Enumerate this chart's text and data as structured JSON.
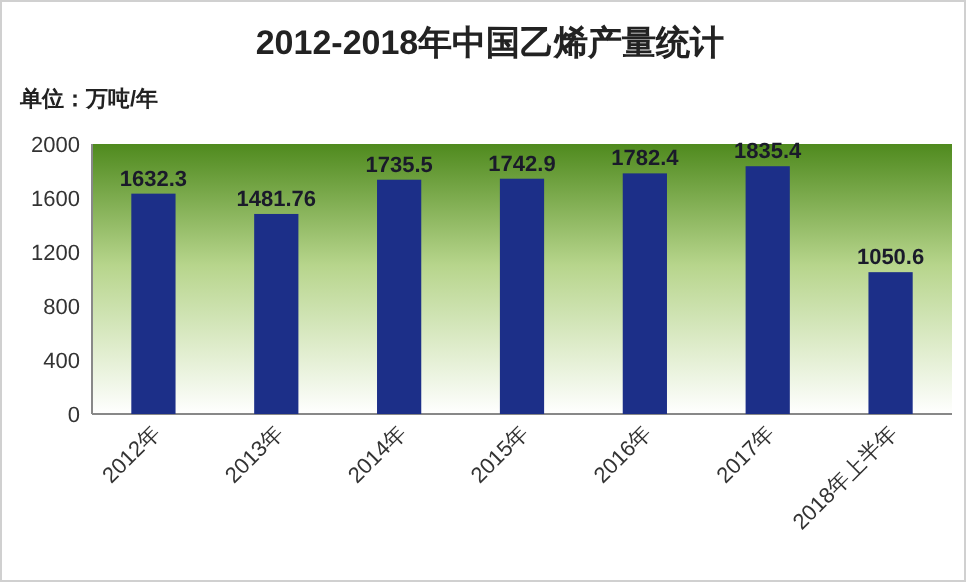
{
  "chart_data": {
    "type": "bar",
    "title": "2012-2018年中国乙烯产量统计",
    "ylabel": "单位：万吨/年",
    "categories": [
      "2012年",
      "2013年",
      "2014年",
      "2015年",
      "2016年",
      "2017年",
      "2018年上半年"
    ],
    "values": [
      1632.3,
      1481.76,
      1735.5,
      1742.9,
      1782.4,
      1835.4,
      1050.6
    ],
    "color": "#1c2f88",
    "ylim": [
      0,
      2000
    ],
    "yticks": [
      0,
      400,
      800,
      1200,
      1600,
      2000
    ],
    "data_labels": true
  }
}
